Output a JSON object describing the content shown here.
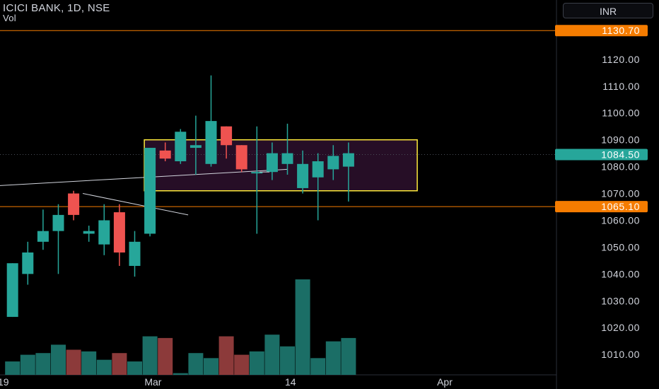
{
  "header": {
    "symbol": "ICICI BANK, 1D, NSE",
    "volume_label": "Vol",
    "currency": "INR"
  },
  "colors": {
    "up": "#26a69a",
    "down": "#ef5350",
    "vol_up": "#1b6e66",
    "vol_down": "#8c3a3a",
    "box_stroke": "#ffeb3b",
    "box_fill": "#2a0f2a",
    "hline": "#f57c00",
    "badge_current": "#26a69a",
    "badge_level": "#f57c00",
    "axis_text": "#d1d4dc"
  },
  "chart_data": {
    "type": "candlestick",
    "y_axis": {
      "ticks": [
        "1120.00",
        "1110.00",
        "1100.00",
        "1090.00",
        "1080.00",
        "1070.00",
        "1060.00",
        "1050.00",
        "1040.00",
        "1030.00",
        "1020.00",
        "1010.00"
      ],
      "range": [
        1002.4,
        1142.1
      ]
    },
    "x_axis": {
      "labels": [
        {
          "text": "19",
          "bar": -0.6
        },
        {
          "text": "Mar",
          "bar": 9.2
        },
        {
          "text": "14",
          "bar": 18.2
        },
        {
          "text": "Apr",
          "bar": 28.3
        }
      ]
    },
    "candles": [
      {
        "o": 1024,
        "h": 1044,
        "l": 1024,
        "c": 1044
      },
      {
        "o": 1040,
        "h": 1052,
        "l": 1036,
        "c": 1048
      },
      {
        "o": 1052,
        "h": 1064,
        "l": 1049,
        "c": 1056
      },
      {
        "o": 1056,
        "h": 1066,
        "l": 1040,
        "c": 1062
      },
      {
        "o": 1070,
        "h": 1071,
        "l": 1060,
        "c": 1062
      },
      {
        "o": 1055,
        "h": 1058,
        "l": 1052,
        "c": 1056
      },
      {
        "o": 1051,
        "h": 1066,
        "l": 1047,
        "c": 1060
      },
      {
        "o": 1063,
        "h": 1066,
        "l": 1043,
        "c": 1048
      },
      {
        "o": 1043,
        "h": 1056,
        "l": 1039,
        "c": 1052
      },
      {
        "o": 1055,
        "h": 1087,
        "l": 1054,
        "c": 1087
      },
      {
        "o": 1086,
        "h": 1089,
        "l": 1082,
        "c": 1083
      },
      {
        "o": 1082,
        "h": 1094,
        "l": 1081,
        "c": 1093
      },
      {
        "o": 1087,
        "h": 1099,
        "l": 1077,
        "c": 1088
      },
      {
        "o": 1081,
        "h": 1114,
        "l": 1080,
        "c": 1097
      },
      {
        "o": 1095,
        "h": 1095,
        "l": 1083,
        "c": 1088
      },
      {
        "o": 1088,
        "h": 1088,
        "l": 1078,
        "c": 1079
      },
      {
        "o": 1078,
        "h": 1095,
        "l": 1055,
        "c": 1078
      },
      {
        "o": 1078,
        "h": 1089,
        "l": 1075,
        "c": 1085
      },
      {
        "o": 1081,
        "h": 1096,
        "l": 1077,
        "c": 1085
      },
      {
        "o": 1072,
        "h": 1086,
        "l": 1070,
        "c": 1081
      },
      {
        "o": 1076,
        "h": 1085,
        "l": 1060,
        "c": 1082
      },
      {
        "o": 1079,
        "h": 1088,
        "l": 1075,
        "c": 1084
      },
      {
        "o": 1080,
        "h": 1089,
        "l": 1067,
        "c": 1085
      }
    ],
    "volume": [
      8,
      12,
      13,
      18,
      15,
      14,
      9,
      13,
      8,
      23,
      22,
      1,
      13,
      10,
      23,
      12,
      14,
      24,
      17,
      57,
      10,
      20,
      22
    ],
    "volume_max": 57,
    "horizontal_levels": [
      {
        "price": 1130.7,
        "label": "1130.70"
      },
      {
        "price": 1065.1,
        "label": "1065.10"
      }
    ],
    "current_price": {
      "price": 1084.5,
      "label": "1084.50"
    },
    "range_box": {
      "from_bar": 9,
      "to_bar": 26.5,
      "top": 1090,
      "bottom": 1071
    },
    "trendlines": [
      {
        "bar1": -10,
        "p1": 1070,
        "bar2": 18,
        "p2": 1079
      },
      {
        "bar1": 4.6,
        "p1": 1070,
        "bar2": 11.5,
        "p2": 1062
      }
    ],
    "marker": {
      "bar": 16.5,
      "price": 1078
    }
  }
}
